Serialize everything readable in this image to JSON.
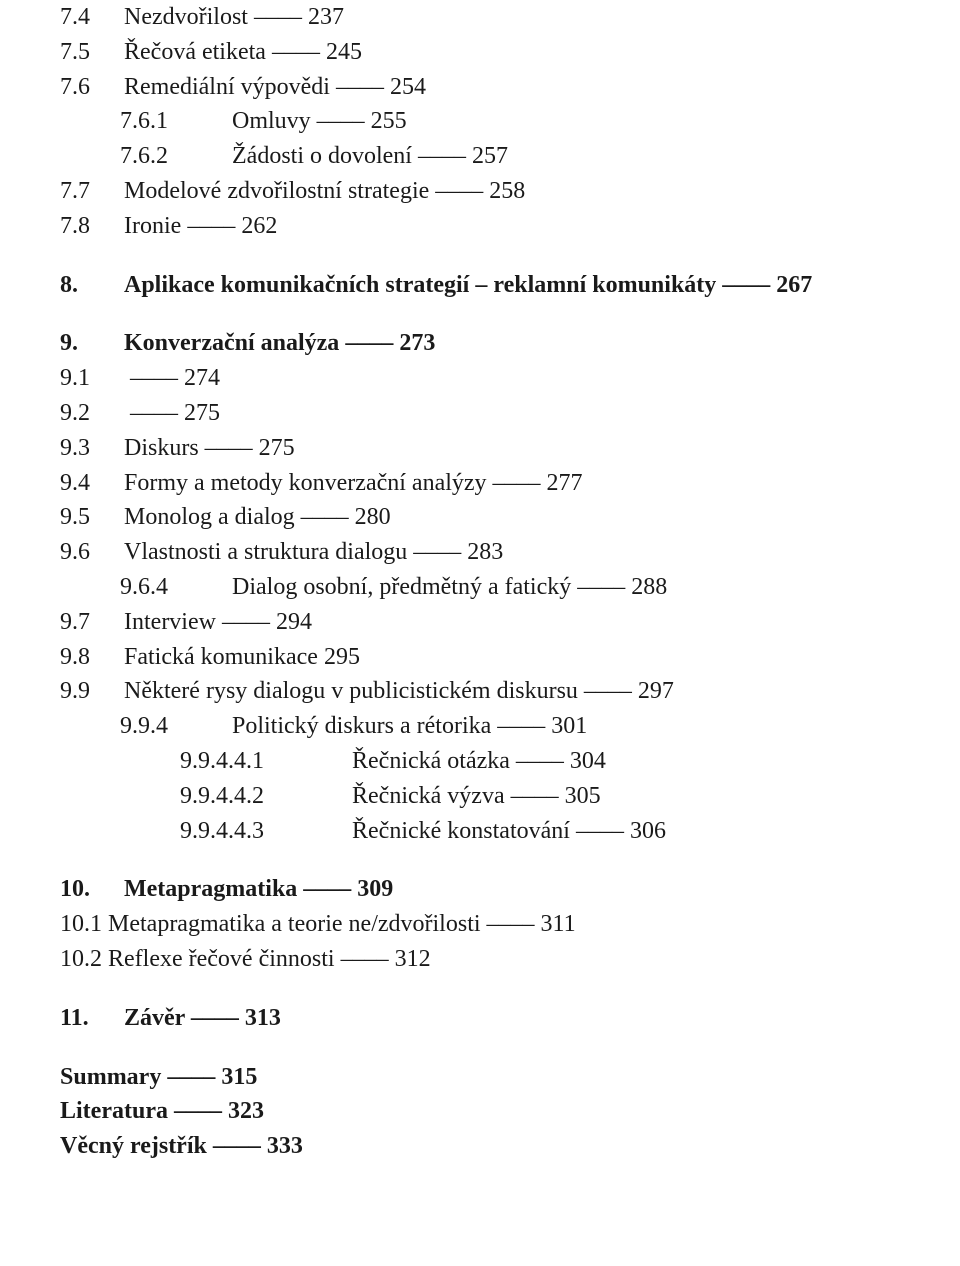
{
  "separator": " –––– ",
  "separator_short": "   ",
  "numCols": [
    64,
    112,
    172
  ],
  "toc": [
    {
      "num": "7.4",
      "title": "Nezdvořilost",
      "page": "237",
      "level": 1,
      "bold": false,
      "sep": true
    },
    {
      "num": "7.5",
      "title": "Řečová etiketa",
      "page": "245",
      "level": 1,
      "bold": false,
      "sep": true
    },
    {
      "num": "7.6",
      "title": "Remediální výpovědi",
      "page": "254",
      "level": 1,
      "bold": false,
      "sep": true
    },
    {
      "num": "7.6.1",
      "title": "Omluvy",
      "page": "255",
      "level": 2,
      "bold": false,
      "sep": true
    },
    {
      "num": "7.6.2",
      "title": "Žádosti o dovolení",
      "page": "257",
      "level": 2,
      "bold": false,
      "sep": true
    },
    {
      "num": "7.7",
      "title": "Modelové zdvořilostní strategie",
      "page": "258",
      "level": 1,
      "bold": false,
      "sep": true
    },
    {
      "num": "7.8",
      "title": "Ironie",
      "page": "262",
      "level": 1,
      "bold": false,
      "sep": true
    },
    {
      "gap": true
    },
    {
      "num": "8.",
      "title": "Aplikace komunikačních strategií – reklamní komunikáty",
      "page": "267",
      "level": 1,
      "bold": true,
      "sep": true
    },
    {
      "gap": true
    },
    {
      "num": "9.",
      "title": "Konverzační analýza",
      "page": "273",
      "level": 1,
      "bold": true,
      "sep": true
    },
    {
      "num": "9.1",
      "title": "",
      "page": "274",
      "level": 1,
      "bold": false,
      "sep": true
    },
    {
      "num": "9.2",
      "title": "",
      "page": "275",
      "level": 1,
      "bold": false,
      "sep": true
    },
    {
      "num": "9.3",
      "title": "Diskurs",
      "page": "275",
      "level": 1,
      "bold": false,
      "sep": true
    },
    {
      "num": "9.4",
      "title": "Formy a metody konverzační analýzy",
      "page": "277",
      "level": 1,
      "bold": false,
      "sep": true
    },
    {
      "num": "9.5",
      "title": "Monolog a dialog",
      "page": "280",
      "level": 1,
      "bold": false,
      "sep": true
    },
    {
      "num": "9.6",
      "title": "Vlastnosti a struktura dialogu",
      "page": "283",
      "level": 1,
      "bold": false,
      "sep": true
    },
    {
      "num": "9.6.4",
      "title": "Dialog osobní, předmětný a fatický",
      "page": "288",
      "level": 2,
      "bold": false,
      "sep": true
    },
    {
      "num": "9.7",
      "title": "Interview",
      "page": "294",
      "level": 1,
      "bold": false,
      "sep": true
    },
    {
      "num": "9.8",
      "title": "Fatická komunikace",
      "page": "295",
      "level": 1,
      "bold": false,
      "sep": false
    },
    {
      "num": "9.9",
      "title": "Některé rysy dialogu v publicistickém diskursu",
      "page": "297",
      "level": 1,
      "bold": false,
      "sep": true
    },
    {
      "num": "9.9.4",
      "title": "Politický diskurs a rétorika",
      "page": "301",
      "level": 2,
      "bold": false,
      "sep": true
    },
    {
      "num": "9.9.4.4.1",
      "title": "Řečnická otázka",
      "page": "304",
      "level": 3,
      "bold": false,
      "sep": true
    },
    {
      "num": "9.9.4.4.2",
      "title": "Řečnická výzva",
      "page": "305",
      "level": 3,
      "bold": false,
      "sep": true
    },
    {
      "num": "9.9.4.4.3",
      "title": "Řečnické konstatování",
      "page": "306",
      "level": 3,
      "bold": false,
      "sep": true
    },
    {
      "gap": true
    },
    {
      "num": "10.",
      "title": "Metapragmatika",
      "page": "309",
      "level": 1,
      "bold": true,
      "sep": true
    },
    {
      "num": "10.1",
      "title": "Metapragmatika a teorie ne/zdvořilosti",
      "page": "311",
      "level": 1,
      "bold": false,
      "sep": true,
      "noNumCol": true
    },
    {
      "num": "10.2",
      "title": "Reflexe řečové činnosti",
      "page": "312",
      "level": 1,
      "bold": false,
      "sep": true,
      "noNumCol": true
    },
    {
      "gap": true
    },
    {
      "num": "11.",
      "title": "Závěr",
      "page": "313",
      "level": 1,
      "bold": true,
      "sep": true
    },
    {
      "gap": true
    },
    {
      "num": "",
      "title": "Summary",
      "page": "315",
      "level": 1,
      "bold": true,
      "sep": true,
      "noNumCol": true
    },
    {
      "num": "",
      "title": "Literatura",
      "page": "323",
      "level": 1,
      "bold": true,
      "sep": true,
      "noNumCol": true
    },
    {
      "num": "",
      "title": "Věcný rejstřík",
      "page": "333",
      "level": 1,
      "bold": true,
      "sep": true,
      "noNumCol": true
    }
  ]
}
